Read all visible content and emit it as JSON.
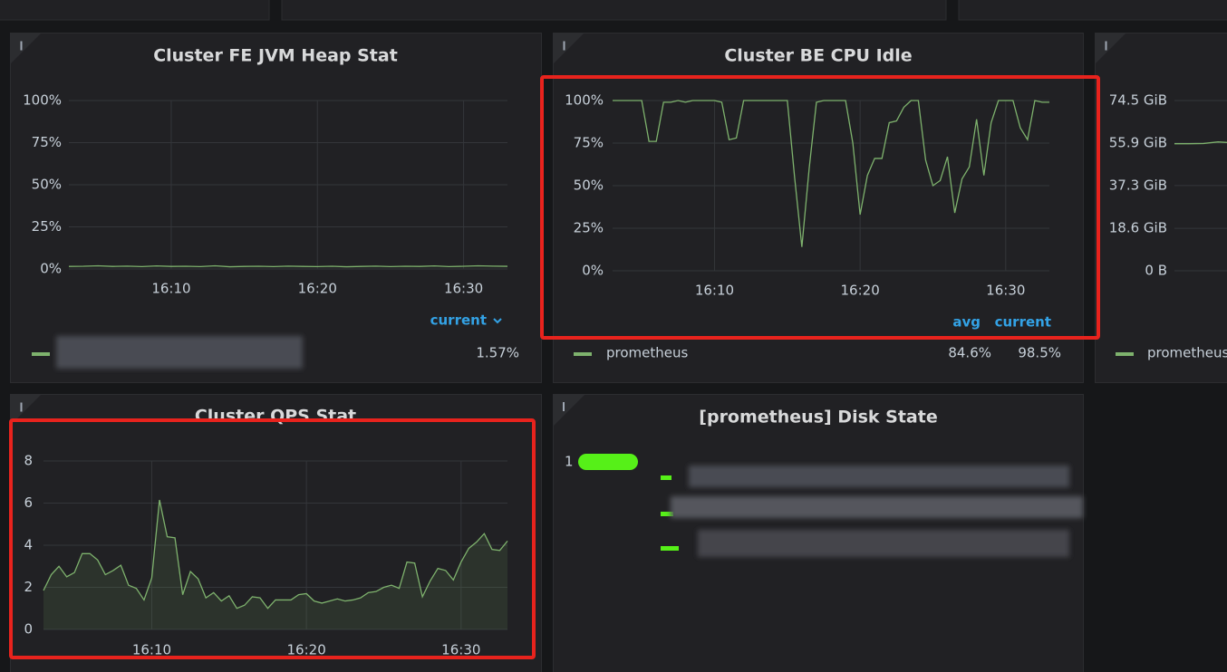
{
  "chart_data": [
    {
      "type": "line",
      "title": "Cluster FE JVM Heap Stat",
      "x": [
        963,
        964,
        965,
        966,
        967,
        968,
        969,
        970,
        971,
        972,
        973,
        974,
        975,
        976,
        977,
        978,
        979,
        980,
        981,
        982,
        983,
        984,
        985,
        986,
        987,
        988,
        989,
        990,
        991,
        992,
        993
      ],
      "xlim": [
        963,
        993
      ],
      "xticks": [
        {
          "value": 970,
          "label": "16:10"
        },
        {
          "value": 980,
          "label": "16:20"
        },
        {
          "value": 990,
          "label": "16:30"
        }
      ],
      "ylim": [
        0,
        100
      ],
      "yticks": [
        {
          "value": 0,
          "label": "0%"
        },
        {
          "value": 25,
          "label": "25%"
        },
        {
          "value": 50,
          "label": "50%"
        },
        {
          "value": 75,
          "label": "75%"
        },
        {
          "value": 100,
          "label": "100%"
        }
      ],
      "grid": true,
      "legend_columns": [
        "current"
      ],
      "series": [
        {
          "color": "#7eb26d",
          "values": [
            1.5,
            1.6,
            1.9,
            1.5,
            1.7,
            1.4,
            1.8,
            1.5,
            1.6,
            1.4,
            1.9,
            1.3,
            1.5,
            1.6,
            1.4,
            1.7,
            1.5,
            1.4,
            1.6,
            1.3,
            1.5,
            1.7,
            1.4,
            1.6,
            1.5,
            1.8,
            1.4,
            1.6,
            1.9,
            1.7,
            1.57
          ],
          "stats": [
            {
              "value": 1.57,
              "label": "1.57%"
            }
          ]
        }
      ]
    },
    {
      "type": "line",
      "title": "Cluster BE CPU Idle",
      "x": [
        963,
        963.5,
        964,
        964.5,
        965,
        965.5,
        966,
        966.5,
        967,
        967.5,
        968,
        968.5,
        969,
        969.5,
        970,
        970.5,
        971,
        971.5,
        972,
        972.5,
        973,
        973.5,
        974,
        974.5,
        975,
        975.5,
        976,
        976.5,
        977,
        977.5,
        978,
        978.5,
        979,
        979.5,
        980,
        980.5,
        981,
        981.5,
        982,
        982.5,
        983,
        983.5,
        984,
        984.5,
        985,
        985.5,
        986,
        986.5,
        987,
        987.5,
        988,
        988.5,
        989,
        989.5,
        990,
        990.5,
        991,
        991.5,
        992,
        992.5,
        993
      ],
      "xlim": [
        963,
        993
      ],
      "xticks": [
        {
          "value": 970,
          "label": "16:10"
        },
        {
          "value": 980,
          "label": "16:20"
        },
        {
          "value": 990,
          "label": "16:30"
        }
      ],
      "ylim": [
        0,
        100
      ],
      "yticks": [
        {
          "value": 0,
          "label": "0%"
        },
        {
          "value": 25,
          "label": "25%"
        },
        {
          "value": 50,
          "label": "50%"
        },
        {
          "value": 75,
          "label": "75%"
        },
        {
          "value": 100,
          "label": "100%"
        }
      ],
      "grid": true,
      "legend_columns": [
        "avg",
        "current"
      ],
      "series": [
        {
          "name": "prometheus",
          "color": "#7eb26d",
          "values": [
            100,
            100,
            100,
            100,
            100,
            76,
            76,
            99,
            99,
            100,
            99,
            100,
            100,
            100,
            100,
            99,
            77,
            78,
            100,
            100,
            100,
            100,
            100,
            100,
            100,
            55,
            14,
            60,
            99,
            100,
            100,
            100,
            100,
            75,
            33,
            56,
            66,
            66,
            87,
            88,
            96,
            100,
            100,
            65,
            50,
            53,
            67,
            34,
            54,
            61,
            89,
            56,
            87,
            100,
            100,
            100,
            84,
            77,
            100,
            99,
            99
          ],
          "stats": [
            {
              "value": 84.6,
              "label": "84.6%"
            },
            {
              "value": 98.5,
              "label": "98.5%"
            }
          ]
        }
      ]
    },
    {
      "type": "line",
      "x": [
        963,
        964,
        965,
        966,
        967
      ],
      "xlim": [
        963,
        993
      ],
      "ylim": [
        0,
        74.5
      ],
      "yticks": [
        {
          "value": 0,
          "label": "0 B"
        },
        {
          "value": 18.6,
          "label": "18.6 GiB"
        },
        {
          "value": 37.3,
          "label": "37.3 GiB"
        },
        {
          "value": 55.9,
          "label": "55.9 GiB"
        },
        {
          "value": 74.5,
          "label": "74.5 GiB"
        }
      ],
      "grid": true,
      "series": [
        {
          "name": "prometheus",
          "color": "#7eb26d",
          "values": [
            55.6,
            55.6,
            55.7,
            56.4,
            56.0
          ]
        }
      ]
    },
    {
      "type": "line",
      "title": "Cluster QPS Stat",
      "x": [
        963,
        963.5,
        964,
        964.5,
        965,
        965.5,
        966,
        966.5,
        967,
        967.5,
        968,
        968.5,
        969,
        969.5,
        970,
        970.5,
        971,
        971.5,
        972,
        972.5,
        973,
        973.5,
        974,
        974.5,
        975,
        975.5,
        976,
        976.5,
        977,
        977.5,
        978,
        978.5,
        979,
        979.5,
        980,
        980.5,
        981,
        981.5,
        982,
        982.5,
        983,
        983.5,
        984,
        984.5,
        985,
        985.5,
        986,
        986.5,
        987,
        987.5,
        988,
        988.5,
        989,
        989.5,
        990,
        990.5,
        991,
        991.5,
        992,
        992.5,
        993
      ],
      "xlim": [
        963,
        993
      ],
      "xticks": [
        {
          "value": 970,
          "label": "16:10"
        },
        {
          "value": 980,
          "label": "16:20"
        },
        {
          "value": 990,
          "label": "16:30"
        }
      ],
      "ylim": [
        0,
        8
      ],
      "yticks": [
        0,
        2,
        4,
        6,
        8
      ],
      "grid": true,
      "fill": true,
      "series": [
        {
          "color": "#7eb26d",
          "values": [
            1.85,
            2.6,
            3.0,
            2.5,
            2.7,
            3.6,
            3.6,
            3.3,
            2.6,
            2.8,
            3.05,
            2.1,
            1.95,
            1.4,
            2.45,
            6.15,
            4.4,
            4.35,
            1.65,
            2.75,
            2.4,
            1.5,
            1.75,
            1.35,
            1.6,
            1.0,
            1.15,
            1.55,
            1.5,
            1.0,
            1.4,
            1.4,
            1.4,
            1.65,
            1.7,
            1.35,
            1.25,
            1.35,
            1.45,
            1.35,
            1.4,
            1.5,
            1.75,
            1.8,
            2.0,
            2.1,
            1.95,
            3.2,
            3.15,
            1.55,
            2.3,
            2.9,
            2.8,
            2.35,
            3.2,
            3.85,
            4.15,
            4.55,
            3.8,
            3.75,
            4.2
          ]
        }
      ]
    }
  ],
  "disk_panel": {
    "title": "[prometheus] Disk State",
    "items": [
      1
    ]
  }
}
